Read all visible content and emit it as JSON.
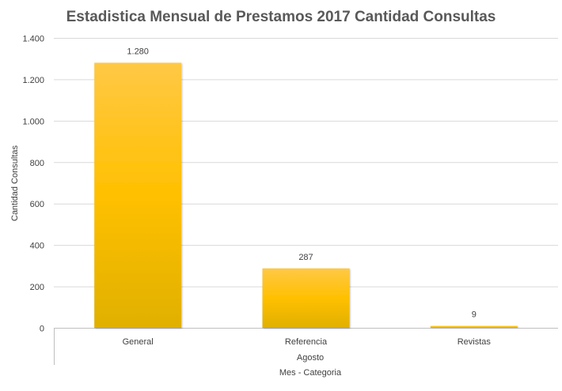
{
  "chart_data": {
    "type": "bar",
    "title": "Estadistica Mensual de Prestamos 2017 Cantidad Consultas",
    "categories": [
      "General",
      "Referencia",
      "Revistas"
    ],
    "group_label": "Agosto",
    "values": [
      1280,
      287,
      9
    ],
    "value_labels": [
      "1.280",
      "287",
      "9"
    ],
    "xlabel": "Mes - Categoria",
    "ylabel": "Cantidad Consultas",
    "ylim": [
      0,
      1400
    ],
    "yticks": [
      0,
      200,
      400,
      600,
      800,
      1000,
      1200,
      1400
    ],
    "ytick_labels": [
      "0",
      "200",
      "400",
      "600",
      "800",
      "1.000",
      "1.200",
      "1.400"
    ],
    "grid": true,
    "legend": "none",
    "colors": {
      "bar_top": "#FFC845",
      "bar_mid": "#FFC000",
      "bar_bottom": "#E0B000",
      "grid": "#D9D9D9"
    }
  }
}
